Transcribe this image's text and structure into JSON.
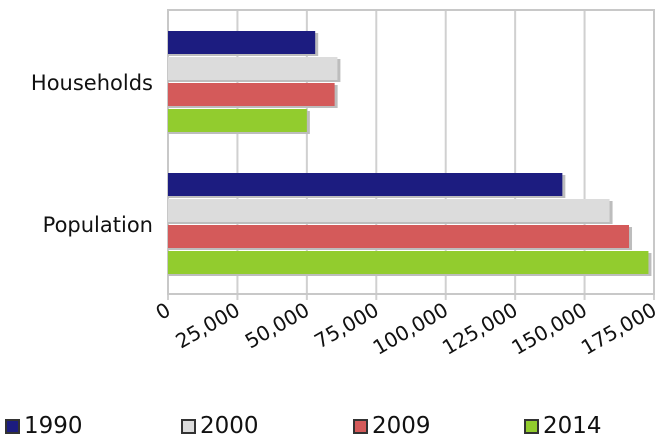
{
  "chart_data": {
    "type": "bar",
    "orientation": "horizontal",
    "categories": [
      "Households",
      "Population"
    ],
    "series": [
      {
        "name": "1990",
        "color": "#1c1c80",
        "values": [
          53000,
          142000
        ]
      },
      {
        "name": "2000",
        "color": "#dcdcdc",
        "values": [
          61000,
          159000
        ]
      },
      {
        "name": "2009",
        "color": "#d45a5a",
        "values": [
          60000,
          166000
        ]
      },
      {
        "name": "2014",
        "color": "#92cc2e",
        "values": [
          50000,
          173000
        ]
      }
    ],
    "xticks": [
      "0",
      "25,000",
      "50,000",
      "75,000",
      "100,000",
      "125,000",
      "150,000",
      "175,000"
    ],
    "xlim": [
      0,
      175000
    ],
    "grid": true,
    "legend_position": "bottom"
  }
}
